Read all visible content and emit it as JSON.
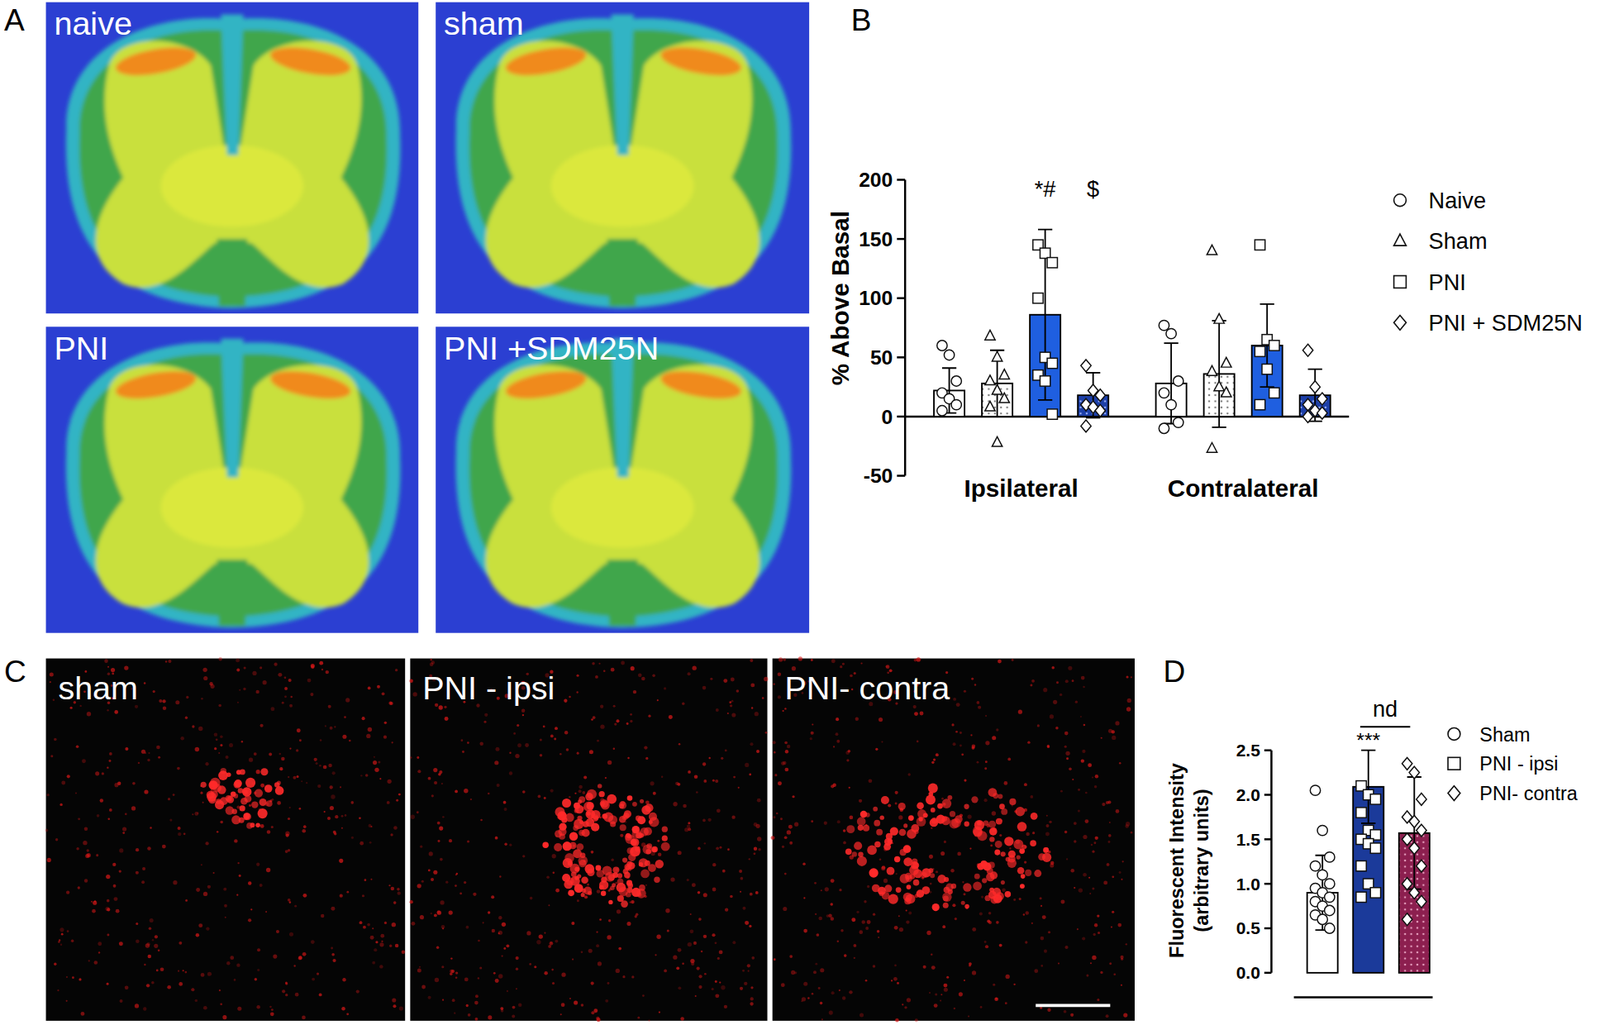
{
  "figure": {
    "panel_labels": [
      "A",
      "B",
      "C",
      "D"
    ],
    "panel_a_images": [
      "naive",
      "sham",
      "PNI",
      "PNI +SDM25N"
    ],
    "panel_c_images": [
      "sham",
      "PNI - ipsi",
      "PNI- contra"
    ]
  },
  "chart_data": [
    {
      "type": "bar",
      "y_label": "% Above Basal",
      "categories": [
        "Ipsilateral",
        "Contralateral"
      ],
      "ylim": [
        -50,
        200
      ],
      "yticks": [
        -50,
        0,
        50,
        100,
        150,
        200
      ],
      "legend": "right",
      "series": [
        {
          "name": "Naive",
          "color": "#ffffff",
          "marker": "circle",
          "values": [
            22,
            28
          ],
          "errors": [
            19,
            34
          ],
          "points": [
            [
              60,
              52,
              30,
              20,
              15,
              10,
              5
            ],
            [
              77,
              70,
              30,
              20,
              10,
              -5,
              -10
            ]
          ]
        },
        {
          "name": "Sham",
          "color": "#ffffff",
          "marker": "triangle",
          "values": [
            28,
            36
          ],
          "errors": [
            28,
            45
          ],
          "points": [
            [
              68,
              50,
              35,
              30,
              22,
              15,
              8,
              -22
            ],
            [
              140,
              82,
              45,
              38,
              25,
              20,
              -27
            ]
          ]
        },
        {
          "name": "PNI",
          "color": "#1f5fe0",
          "marker": "square",
          "values": [
            86,
            60
          ],
          "errors": [
            72,
            35
          ],
          "points": [
            [
              145,
              138,
              130,
              100,
              50,
              45,
              35,
              30,
              2
            ],
            [
              145,
              65,
              60,
              55,
              40,
              20,
              10
            ]
          ],
          "annotations": [
            "*#",
            null
          ]
        },
        {
          "name": "PNI + SDM25N",
          "color": "#1c3fa8",
          "marker": "diamond",
          "values": [
            18,
            18
          ],
          "errors": [
            19,
            22
          ],
          "points": [
            [
              43,
              22,
              18,
              10,
              8,
              5,
              -8
            ],
            [
              56,
              25,
              15,
              10,
              5,
              3,
              0
            ]
          ],
          "annotations": [
            "$",
            null
          ]
        }
      ]
    },
    {
      "type": "bar",
      "y_label": "Fluorescent Intensity\n(arbitrary units)",
      "ylim": [
        0,
        2.5
      ],
      "yticks": [
        {
          "value": 0,
          "label": "0.0"
        },
        0.5,
        {
          "value": 1,
          "label": "1.0"
        },
        1.5,
        {
          "value": 2,
          "label": "2.0"
        },
        2.5
      ],
      "tick_labels": "y",
      "legend": "right",
      "series": [
        {
          "name": "Sham",
          "color": "#ffffff",
          "marker": "circle",
          "values": [
            0.9
          ],
          "errors": [
            0.42
          ],
          "points": [
            [
              2.05,
              1.6,
              1.3,
              1.2,
              1.1,
              1.0,
              0.95,
              0.9,
              0.85,
              0.8,
              0.75,
              0.7,
              0.65,
              0.6,
              0.5
            ]
          ]
        },
        {
          "name": "PNI - ipsi",
          "color": "#1b3a9a",
          "marker": "square",
          "values": [
            2.09
          ],
          "errors": [
            0.41
          ],
          "points": [
            [
              2.1,
              2.0,
              1.95,
              1.8,
              1.6,
              1.55,
              1.5,
              1.45,
              1.4,
              1.2,
              1.0,
              0.9,
              0.85
            ]
          ],
          "annotations": [
            "***"
          ]
        },
        {
          "name": "PNI- contra",
          "color": "#8c1f4f",
          "marker": "diamond",
          "values": [
            1.57
          ],
          "errors": [
            0.63
          ],
          "points": [
            [
              2.35,
              2.25,
              1.95,
              1.75,
              1.7,
              1.6,
              1.5,
              1.4,
              1.2,
              1.0,
              0.9,
              0.8,
              0.6
            ]
          ]
        }
      ],
      "comparisons": [
        {
          "label": "nd",
          "series": [
            1,
            2
          ]
        }
      ]
    }
  ]
}
